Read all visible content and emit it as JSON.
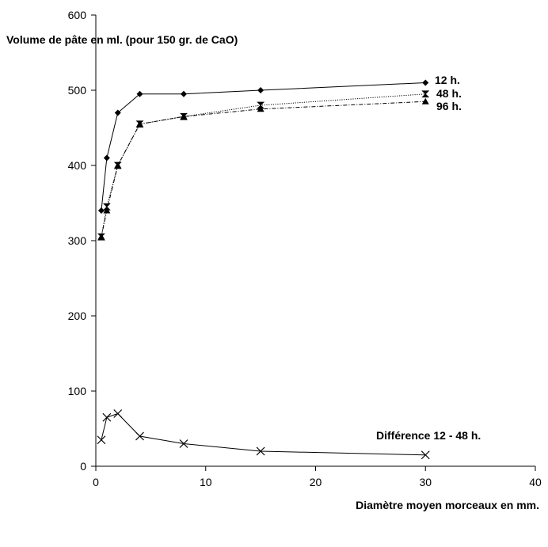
{
  "chart_data": {
    "type": "line",
    "ylabel": "Volume de pâte en ml. (pour 150 gr. de CaO)",
    "xlabel": "Diamètre moyen morceaux en mm.",
    "xlim": [
      0,
      40
    ],
    "ylim": [
      0,
      600
    ],
    "x_ticks": [
      0,
      10,
      20,
      30,
      40
    ],
    "y_ticks": [
      0,
      100,
      200,
      300,
      400,
      500,
      600
    ],
    "grid": false,
    "series": [
      {
        "name": "12 h.",
        "marker": "diamond",
        "line_style": "solid",
        "x": [
          0.5,
          1,
          2,
          4,
          8,
          15,
          30
        ],
        "y": [
          340,
          410,
          470,
          495,
          495,
          500,
          510
        ]
      },
      {
        "name": "48 h.",
        "marker": "hourglass",
        "line_style": "dotted",
        "x": [
          0.5,
          1,
          2,
          4,
          8,
          15,
          30
        ],
        "y": [
          305,
          345,
          400,
          455,
          465,
          480,
          495
        ]
      },
      {
        "name": "96 h.",
        "marker": "triangle",
        "line_style": "dash-dot",
        "x": [
          0.5,
          1,
          2,
          4,
          8,
          15,
          30
        ],
        "y": [
          305,
          340,
          400,
          455,
          465,
          475,
          485
        ]
      },
      {
        "name": "Différence 12 - 48 h.",
        "marker": "x",
        "line_style": "solid",
        "x": [
          0.5,
          1,
          2,
          4,
          8,
          15,
          30
        ],
        "y": [
          35,
          65,
          70,
          40,
          30,
          20,
          15
        ]
      }
    ]
  }
}
